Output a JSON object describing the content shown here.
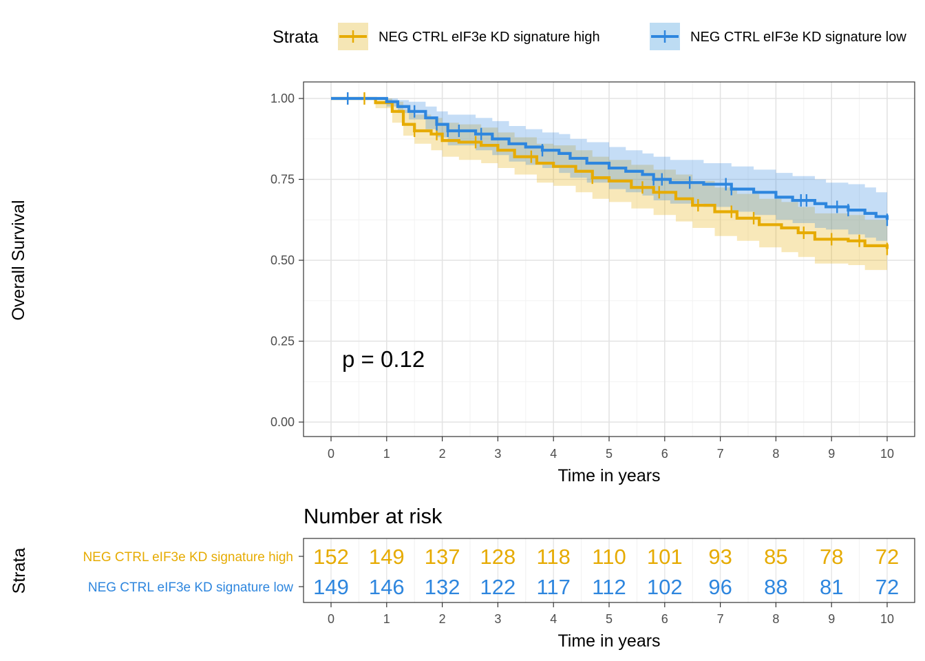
{
  "legend": {
    "title": "Strata",
    "items": [
      {
        "label": "NEG CTRL eIF3e KD signature high",
        "color": "#E6AB02"
      },
      {
        "label": "NEG CTRL eIF3e KD signature low",
        "color": "#2E86DE"
      }
    ]
  },
  "chart_data": {
    "type": "line",
    "subtype": "kaplan-meier",
    "xlabel": "Time in years",
    "ylabel": "Overall Survival",
    "xlim": [
      0,
      10
    ],
    "ylim": [
      0,
      1
    ],
    "x_ticks": [
      "0",
      "1",
      "2",
      "3",
      "4",
      "5",
      "6",
      "7",
      "8",
      "9",
      "10"
    ],
    "y_ticks": [
      "0.00",
      "0.25",
      "0.50",
      "0.75",
      "1.00"
    ],
    "grid": true,
    "legend_position": "top",
    "annotation": "p = 0.12",
    "series": [
      {
        "name": "NEG CTRL eIF3e KD signature high",
        "color": "#E6AB02",
        "steps": [
          [
            0,
            1.0
          ],
          [
            0.8,
            0.987
          ],
          [
            1.1,
            0.96
          ],
          [
            1.3,
            0.92
          ],
          [
            1.5,
            0.9
          ],
          [
            1.8,
            0.89
          ],
          [
            2.0,
            0.87
          ],
          [
            2.3,
            0.865
          ],
          [
            2.7,
            0.855
          ],
          [
            3.0,
            0.84
          ],
          [
            3.3,
            0.82
          ],
          [
            3.7,
            0.8
          ],
          [
            4.0,
            0.79
          ],
          [
            4.4,
            0.775
          ],
          [
            4.7,
            0.755
          ],
          [
            5.0,
            0.745
          ],
          [
            5.4,
            0.725
          ],
          [
            5.8,
            0.71
          ],
          [
            6.2,
            0.69
          ],
          [
            6.5,
            0.67
          ],
          [
            6.9,
            0.65
          ],
          [
            7.3,
            0.63
          ],
          [
            7.7,
            0.61
          ],
          [
            8.1,
            0.6
          ],
          [
            8.4,
            0.585
          ],
          [
            8.7,
            0.565
          ],
          [
            9.3,
            0.56
          ],
          [
            9.6,
            0.545
          ],
          [
            10.0,
            0.535
          ]
        ],
        "upper": [
          [
            0,
            1.0
          ],
          [
            0.8,
            1.0
          ],
          [
            1.1,
            0.99
          ],
          [
            1.3,
            0.965
          ],
          [
            1.5,
            0.95
          ],
          [
            1.8,
            0.94
          ],
          [
            2.0,
            0.925
          ],
          [
            2.3,
            0.92
          ],
          [
            2.7,
            0.91
          ],
          [
            3.0,
            0.895
          ],
          [
            3.3,
            0.88
          ],
          [
            3.7,
            0.86
          ],
          [
            4.0,
            0.855
          ],
          [
            4.4,
            0.84
          ],
          [
            4.7,
            0.82
          ],
          [
            5.0,
            0.81
          ],
          [
            5.4,
            0.795
          ],
          [
            5.8,
            0.78
          ],
          [
            6.2,
            0.765
          ],
          [
            6.5,
            0.745
          ],
          [
            6.9,
            0.725
          ],
          [
            7.3,
            0.705
          ],
          [
            7.7,
            0.69
          ],
          [
            8.1,
            0.68
          ],
          [
            8.4,
            0.665
          ],
          [
            8.7,
            0.645
          ],
          [
            9.3,
            0.64
          ],
          [
            9.6,
            0.625
          ],
          [
            10.0,
            0.615
          ]
        ],
        "lower": [
          [
            0,
            1.0
          ],
          [
            0.8,
            0.97
          ],
          [
            1.1,
            0.925
          ],
          [
            1.3,
            0.885
          ],
          [
            1.5,
            0.86
          ],
          [
            1.8,
            0.84
          ],
          [
            2.0,
            0.82
          ],
          [
            2.3,
            0.81
          ],
          [
            2.7,
            0.8
          ],
          [
            3.0,
            0.785
          ],
          [
            3.3,
            0.765
          ],
          [
            3.7,
            0.74
          ],
          [
            4.0,
            0.73
          ],
          [
            4.4,
            0.71
          ],
          [
            4.7,
            0.69
          ],
          [
            5.0,
            0.68
          ],
          [
            5.4,
            0.66
          ],
          [
            5.8,
            0.64
          ],
          [
            6.2,
            0.62
          ],
          [
            6.5,
            0.6
          ],
          [
            6.9,
            0.575
          ],
          [
            7.3,
            0.56
          ],
          [
            7.7,
            0.54
          ],
          [
            8.1,
            0.525
          ],
          [
            8.4,
            0.51
          ],
          [
            8.7,
            0.49
          ],
          [
            9.3,
            0.485
          ],
          [
            9.6,
            0.47
          ],
          [
            10.0,
            0.46
          ]
        ],
        "censor": [
          0.6,
          1.5,
          1.9,
          2.6,
          3.6,
          4.7,
          5.6,
          5.9,
          6.6,
          7.2,
          7.6,
          8.5,
          9.0,
          9.5,
          10.0
        ]
      },
      {
        "name": "NEG CTRL eIF3e KD signature low",
        "color": "#2E86DE",
        "steps": [
          [
            0,
            1.0
          ],
          [
            1.0,
            0.99
          ],
          [
            1.2,
            0.975
          ],
          [
            1.4,
            0.96
          ],
          [
            1.7,
            0.94
          ],
          [
            1.9,
            0.92
          ],
          [
            2.1,
            0.9
          ],
          [
            2.6,
            0.89
          ],
          [
            2.9,
            0.875
          ],
          [
            3.2,
            0.86
          ],
          [
            3.5,
            0.85
          ],
          [
            3.8,
            0.84
          ],
          [
            4.1,
            0.83
          ],
          [
            4.3,
            0.815
          ],
          [
            4.6,
            0.8
          ],
          [
            5.0,
            0.785
          ],
          [
            5.3,
            0.775
          ],
          [
            5.6,
            0.765
          ],
          [
            5.8,
            0.75
          ],
          [
            6.1,
            0.74
          ],
          [
            6.7,
            0.735
          ],
          [
            7.2,
            0.72
          ],
          [
            7.6,
            0.71
          ],
          [
            8.0,
            0.695
          ],
          [
            8.3,
            0.685
          ],
          [
            8.7,
            0.675
          ],
          [
            8.9,
            0.665
          ],
          [
            9.3,
            0.655
          ],
          [
            9.6,
            0.645
          ],
          [
            9.8,
            0.635
          ],
          [
            10.0,
            0.625
          ]
        ],
        "upper": [
          [
            0,
            1.0
          ],
          [
            1.0,
            1.0
          ],
          [
            1.2,
            0.995
          ],
          [
            1.4,
            0.99
          ],
          [
            1.7,
            0.975
          ],
          [
            1.9,
            0.96
          ],
          [
            2.1,
            0.95
          ],
          [
            2.6,
            0.94
          ],
          [
            2.9,
            0.93
          ],
          [
            3.2,
            0.915
          ],
          [
            3.5,
            0.905
          ],
          [
            3.8,
            0.895
          ],
          [
            4.1,
            0.89
          ],
          [
            4.3,
            0.875
          ],
          [
            4.6,
            0.865
          ],
          [
            5.0,
            0.85
          ],
          [
            5.3,
            0.84
          ],
          [
            5.6,
            0.83
          ],
          [
            5.8,
            0.82
          ],
          [
            6.1,
            0.81
          ],
          [
            6.7,
            0.8
          ],
          [
            7.2,
            0.79
          ],
          [
            7.6,
            0.78
          ],
          [
            8.0,
            0.77
          ],
          [
            8.3,
            0.76
          ],
          [
            8.7,
            0.75
          ],
          [
            8.9,
            0.74
          ],
          [
            9.3,
            0.735
          ],
          [
            9.6,
            0.725
          ],
          [
            9.8,
            0.71
          ],
          [
            10.0,
            0.7
          ]
        ],
        "lower": [
          [
            0,
            1.0
          ],
          [
            1.0,
            0.975
          ],
          [
            1.2,
            0.955
          ],
          [
            1.4,
            0.935
          ],
          [
            1.7,
            0.905
          ],
          [
            1.9,
            0.88
          ],
          [
            2.1,
            0.855
          ],
          [
            2.6,
            0.84
          ],
          [
            2.9,
            0.825
          ],
          [
            3.2,
            0.805
          ],
          [
            3.5,
            0.795
          ],
          [
            3.8,
            0.785
          ],
          [
            4.1,
            0.77
          ],
          [
            4.3,
            0.755
          ],
          [
            4.6,
            0.74
          ],
          [
            5.0,
            0.72
          ],
          [
            5.3,
            0.71
          ],
          [
            5.6,
            0.7
          ],
          [
            5.8,
            0.685
          ],
          [
            6.1,
            0.675
          ],
          [
            6.7,
            0.665
          ],
          [
            7.2,
            0.65
          ],
          [
            7.6,
            0.64
          ],
          [
            8.0,
            0.625
          ],
          [
            8.3,
            0.615
          ],
          [
            8.7,
            0.6
          ],
          [
            8.9,
            0.595
          ],
          [
            9.3,
            0.58
          ],
          [
            9.6,
            0.57
          ],
          [
            9.8,
            0.56
          ],
          [
            10.0,
            0.55
          ]
        ],
        "censor": [
          0.3,
          1.5,
          1.9,
          2.1,
          2.3,
          2.7,
          3.8,
          5.8,
          5.95,
          6.45,
          7.1,
          7.2,
          8.45,
          8.55,
          9.1,
          9.3,
          10.0
        ]
      }
    ]
  },
  "risk_table": {
    "title": "Number at risk",
    "ylabel": "Strata",
    "xlabel": "Time in years",
    "x_ticks": [
      "0",
      "1",
      "2",
      "3",
      "4",
      "5",
      "6",
      "7",
      "8",
      "9",
      "10"
    ],
    "rows": [
      {
        "label": "NEG CTRL eIF3e KD signature high",
        "color": "#E6AB02",
        "values": [
          "152",
          "149",
          "137",
          "128",
          "118",
          "110",
          "101",
          "93",
          "85",
          "78",
          "72"
        ]
      },
      {
        "label": "NEG CTRL eIF3e KD signature low",
        "color": "#2E86DE",
        "values": [
          "149",
          "146",
          "132",
          "122",
          "117",
          "112",
          "102",
          "96",
          "88",
          "81",
          "72"
        ]
      }
    ]
  }
}
